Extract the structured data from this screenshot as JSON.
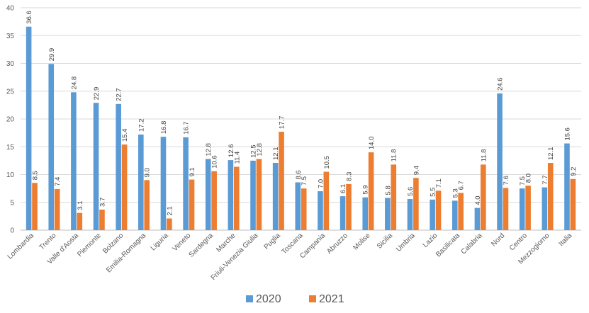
{
  "chart_data": {
    "type": "bar",
    "categories": [
      "Lombardia",
      "Trento",
      "Valle d'Aosta",
      "Piemonte",
      "Bolzano",
      "Emilia-Romagna",
      "Liguria",
      "Veneto",
      "Sardegna",
      "Marche",
      "Friuli-Venezia Giulia",
      "Puglia",
      "Toscana",
      "Campania",
      "Abruzzo",
      "Molise",
      "Sicilia",
      "Umbria",
      "Lazio",
      "Basilicata",
      "Calabria",
      "Nord",
      "Centro",
      "Mezzogiorno",
      "Italia"
    ],
    "series": [
      {
        "name": "2020",
        "color": "#5B9BD5",
        "values": [
          36.6,
          29.9,
          24.8,
          22.9,
          22.7,
          17.2,
          16.8,
          16.7,
          12.8,
          12.6,
          12.5,
          12.1,
          8.6,
          7.0,
          6.1,
          5.9,
          5.8,
          5.6,
          5.5,
          5.3,
          4.0,
          24.6,
          7.5,
          7.7,
          15.6
        ]
      },
      {
        "name": "2021",
        "color": "#ED7D31",
        "values": [
          8.5,
          7.4,
          3.1,
          3.7,
          15.4,
          9.0,
          2.1,
          9.1,
          10.6,
          11.4,
          12.8,
          17.7,
          7.5,
          10.5,
          8.3,
          14.0,
          11.8,
          9.4,
          7.1,
          6.7,
          11.8,
          7.6,
          8.0,
          12.1,
          9.2
        ]
      }
    ],
    "ylim": [
      0,
      40
    ],
    "yticks": [
      0,
      5,
      10,
      15,
      20,
      25,
      30,
      35,
      40
    ],
    "grid": true,
    "legend_position": "bottom"
  }
}
